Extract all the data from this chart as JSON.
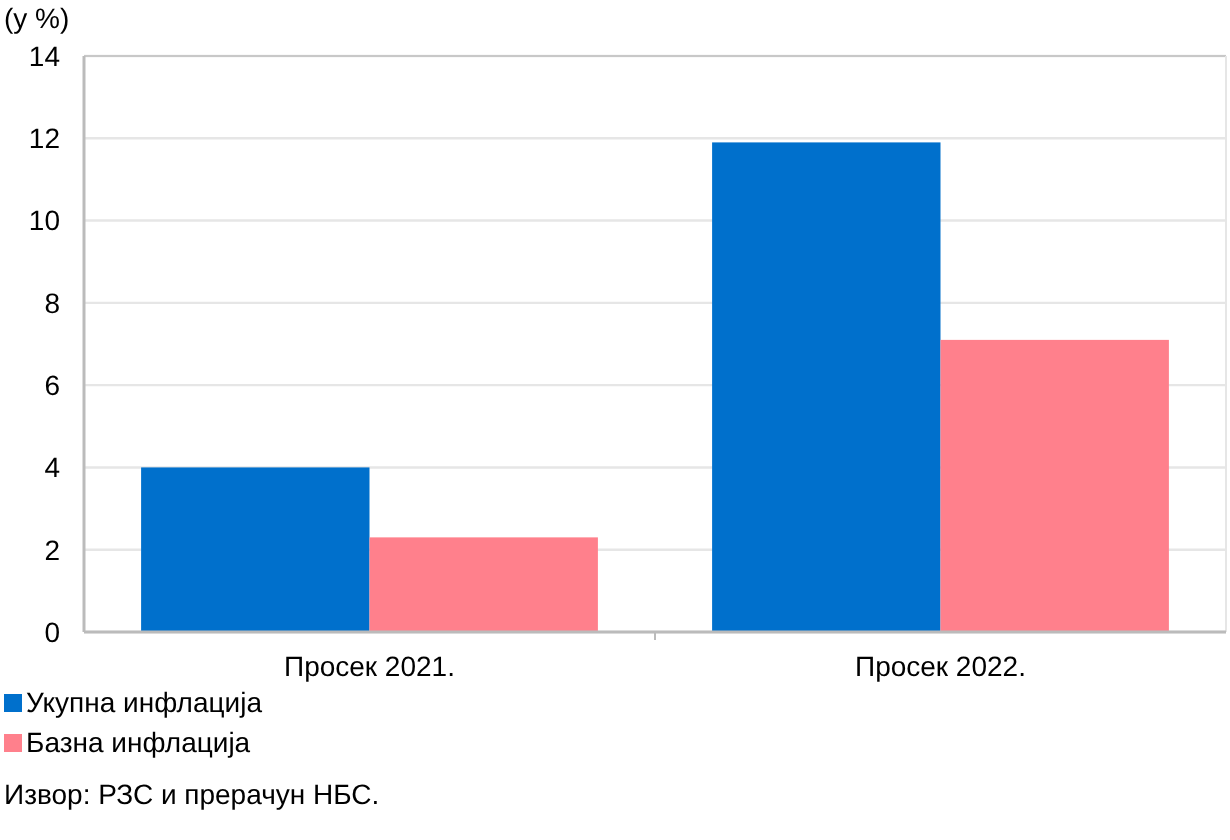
{
  "chart_data": {
    "type": "bar",
    "ylabel": "(у %)",
    "categories": [
      "Просек 2021.",
      "Просек 2022."
    ],
    "series": [
      {
        "name": "Укупна инфлација",
        "color": "#0070cc",
        "values": [
          4.0,
          11.9
        ]
      },
      {
        "name": "Базна инфлација",
        "color": "#ff808c",
        "values": [
          2.3,
          7.1
        ]
      }
    ],
    "ylim": [
      0,
      14
    ],
    "yticks": [
      0,
      2,
      4,
      6,
      8,
      10,
      12,
      14
    ],
    "grid": "y",
    "legend": "bottom left",
    "annotations": [
      "Извор: РЗС и прерачун НБС."
    ]
  }
}
